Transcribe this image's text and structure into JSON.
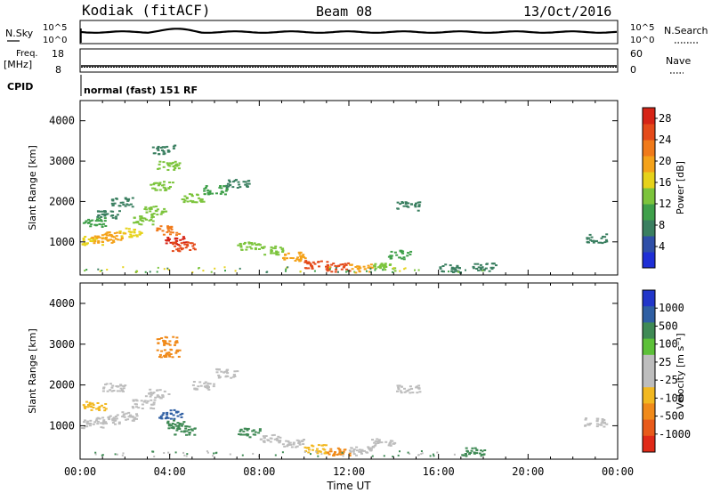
{
  "header": {
    "title": "Kodiak (fitACF)",
    "beam": "Beam 08",
    "date": "13/Oct/2016"
  },
  "top_panels": {
    "nsky_label": "N.Sky",
    "nsky_ticks": [
      "10^5",
      "10^0"
    ],
    "nsearch_label": "N.Search",
    "nsearch_ticks": [
      "10^5",
      "10^0"
    ],
    "freq_label": "Freq.",
    "freq_unit": "[MHz]",
    "freq_ticks": [
      "18",
      "8"
    ],
    "nave_label": "Nave",
    "nave_ticks": [
      "60",
      "0"
    ],
    "cpid_label": "CPID",
    "cpid_text": "normal (fast) 151 RF"
  },
  "colors": {
    "power": [
      "#1f2fd6",
      "#2f4fa8",
      "#3a7f60",
      "#3fa04a",
      "#7cc43c",
      "#e6d21a",
      "#f4a21a",
      "#f07a1a",
      "#e44a1a",
      "#d62416"
    ],
    "velocity": [
      "#2236c9",
      "#2f5fa3",
      "#3f8a55",
      "#5cc038",
      "#bdbdbd",
      "#bdbdbd",
      "#f2b820",
      "#f08a1a",
      "#e85a1a",
      "#e02a18"
    ]
  },
  "chart_data": [
    {
      "type": "heatmap",
      "name": "power",
      "title": "",
      "xlabel": "",
      "ylabel": "Slant Range [km]",
      "xlim": [
        "00:00",
        "00:00"
      ],
      "ylim": [
        180,
        4500
      ],
      "yticks": [
        "1000",
        "2000",
        "3000",
        "4000"
      ],
      "colorbar": {
        "label": "Power [dB]",
        "ticks": [
          "4",
          "8",
          "12",
          "16",
          "20",
          "24",
          "28"
        ],
        "range": [
          0,
          30
        ]
      },
      "features": [
        {
          "x": 0.5,
          "y": 1050,
          "v": 16
        },
        {
          "x": 1.0,
          "y": 1100,
          "v": 20
        },
        {
          "x": 1.6,
          "y": 1150,
          "v": 18
        },
        {
          "x": 2.2,
          "y": 1250,
          "v": 16
        },
        {
          "x": 2.8,
          "y": 1550,
          "v": 14
        },
        {
          "x": 3.3,
          "y": 1800,
          "v": 12
        },
        {
          "x": 3.9,
          "y": 1300,
          "v": 22
        },
        {
          "x": 4.3,
          "y": 1050,
          "v": 28
        },
        {
          "x": 4.6,
          "y": 900,
          "v": 24
        },
        {
          "x": 0.6,
          "y": 1500,
          "v": 10
        },
        {
          "x": 1.2,
          "y": 1700,
          "v": 8
        },
        {
          "x": 1.8,
          "y": 2000,
          "v": 8
        },
        {
          "x": 3.6,
          "y": 2400,
          "v": 14
        },
        {
          "x": 3.9,
          "y": 2900,
          "v": 12
        },
        {
          "x": 3.7,
          "y": 3300,
          "v": 8
        },
        {
          "x": 5.0,
          "y": 2100,
          "v": 12
        },
        {
          "x": 6.0,
          "y": 2300,
          "v": 10
        },
        {
          "x": 7.0,
          "y": 2450,
          "v": 8
        },
        {
          "x": 7.5,
          "y": 900,
          "v": 12
        },
        {
          "x": 8.5,
          "y": 800,
          "v": 14
        },
        {
          "x": 9.5,
          "y": 650,
          "v": 18
        },
        {
          "x": 10.5,
          "y": 450,
          "v": 24
        },
        {
          "x": 11.5,
          "y": 380,
          "v": 26
        },
        {
          "x": 12.5,
          "y": 350,
          "v": 20
        },
        {
          "x": 13.5,
          "y": 400,
          "v": 14
        },
        {
          "x": 14.2,
          "y": 700,
          "v": 10
        },
        {
          "x": 14.6,
          "y": 1900,
          "v": 8
        },
        {
          "x": 16.5,
          "y": 350,
          "v": 8
        },
        {
          "x": 18.0,
          "y": 380,
          "v": 6
        },
        {
          "x": 23.0,
          "y": 1100,
          "v": 6
        }
      ]
    },
    {
      "type": "heatmap",
      "name": "velocity",
      "title": "",
      "xlabel": "Time UT",
      "ylabel": "Slant Range [km]",
      "xlim": [
        "00:00",
        "00:00"
      ],
      "ylim": [
        180,
        4500
      ],
      "xticks": [
        "00:00",
        "04:00",
        "08:00",
        "12:00",
        "16:00",
        "20:00",
        "00:00"
      ],
      "yticks": [
        "1000",
        "2000",
        "3000",
        "4000"
      ],
      "colorbar": {
        "label": "Velocity [m s⁻¹]",
        "ticks": [
          "1000",
          "500",
          "100",
          "25",
          "-25",
          "-100",
          "-500",
          "-1000"
        ]
      },
      "features": [
        {
          "x": 0.5,
          "y": 1050,
          "v": 0
        },
        {
          "x": 1.2,
          "y": 1150,
          "v": 0
        },
        {
          "x": 2.0,
          "y": 1250,
          "v": 0
        },
        {
          "x": 2.8,
          "y": 1550,
          "v": 0
        },
        {
          "x": 3.4,
          "y": 1800,
          "v": 0
        },
        {
          "x": 4.0,
          "y": 1300,
          "v": 300
        },
        {
          "x": 4.3,
          "y": 1050,
          "v": 80
        },
        {
          "x": 4.6,
          "y": 900,
          "v": 60
        },
        {
          "x": 3.8,
          "y": 3100,
          "v": -300
        },
        {
          "x": 3.9,
          "y": 2800,
          "v": -200
        },
        {
          "x": 5.5,
          "y": 2000,
          "v": 0
        },
        {
          "x": 6.5,
          "y": 2300,
          "v": 0
        },
        {
          "x": 0.6,
          "y": 1500,
          "v": -30
        },
        {
          "x": 1.5,
          "y": 1950,
          "v": 0
        },
        {
          "x": 7.5,
          "y": 850,
          "v": 80
        },
        {
          "x": 8.5,
          "y": 700,
          "v": 0
        },
        {
          "x": 9.5,
          "y": 600,
          "v": 0
        },
        {
          "x": 10.5,
          "y": 450,
          "v": -60
        },
        {
          "x": 11.5,
          "y": 380,
          "v": -120
        },
        {
          "x": 12.5,
          "y": 400,
          "v": 0
        },
        {
          "x": 13.5,
          "y": 600,
          "v": 0
        },
        {
          "x": 14.6,
          "y": 1900,
          "v": 0
        },
        {
          "x": 17.5,
          "y": 380,
          "v": 80
        },
        {
          "x": 23.0,
          "y": 1100,
          "v": 0
        }
      ]
    }
  ]
}
